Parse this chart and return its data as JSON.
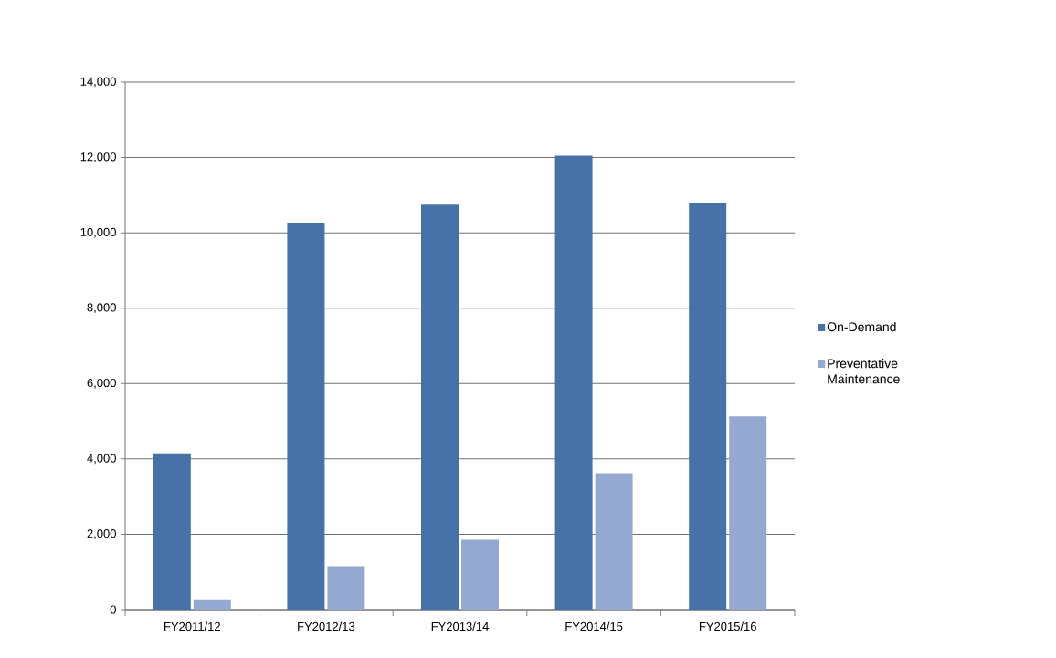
{
  "chart_data": {
    "type": "bar",
    "categories": [
      "FY2011/12",
      "FY2012/13",
      "FY2013/14",
      "FY2014/15",
      "FY2015/16"
    ],
    "series": [
      {
        "name": "On-Demand",
        "color": "#4672a8",
        "values": [
          4150,
          10270,
          10750,
          12050,
          10800
        ]
      },
      {
        "name": "Preventative Maintenance",
        "color": "#95a9d0",
        "values": [
          270,
          1150,
          1850,
          3620,
          5130
        ]
      }
    ],
    "ylim": [
      0,
      14000
    ],
    "yticks": [
      {
        "value": 0,
        "label": "0"
      },
      {
        "value": 2000,
        "label": "2,000"
      },
      {
        "value": 4000,
        "label": "4,000"
      },
      {
        "value": 6000,
        "label": "6,000"
      },
      {
        "value": 8000,
        "label": "8,000"
      },
      {
        "value": 10000,
        "label": "10,000"
      },
      {
        "value": 12000,
        "label": "12,000"
      },
      {
        "value": 14000,
        "label": "14,000"
      }
    ],
    "grid": "y",
    "legend": "right"
  }
}
